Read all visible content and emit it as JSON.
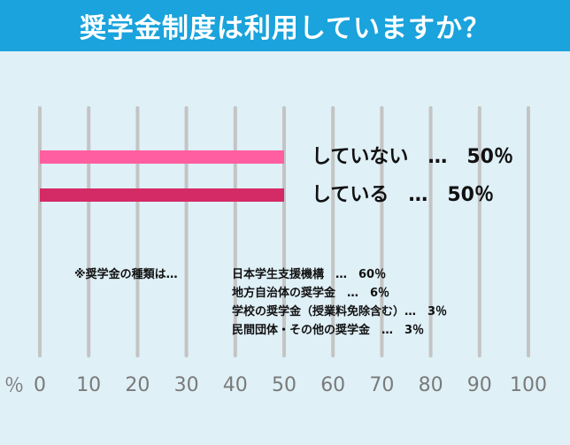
{
  "title": "奨学金制度は利用していますか？",
  "unit_label": "％",
  "chart_data": {
    "type": "bar",
    "orientation": "horizontal",
    "categories": [
      "していない",
      "している"
    ],
    "values": [
      50,
      50
    ],
    "value_labels": [
      "50％",
      "50％"
    ],
    "separator": "…",
    "xlim": [
      0,
      100
    ],
    "xticks": [
      0,
      10,
      20,
      30,
      40,
      50,
      60,
      70,
      80,
      90,
      100
    ],
    "grid": true,
    "colors": [
      "#ff5fa0",
      "#d42a66"
    ],
    "grid_color": "#c4c4c4",
    "tick_color": "#7a7a7a"
  },
  "note": {
    "heading": "※奨学金の種類は…",
    "items": [
      "日本学生支援機構　…　60％",
      "地方自治体の奨学金　…　6％",
      "学校の奨学金（授業料免除含む）…　3％",
      "民間団体・その他の奨学金　…　3％"
    ]
  }
}
